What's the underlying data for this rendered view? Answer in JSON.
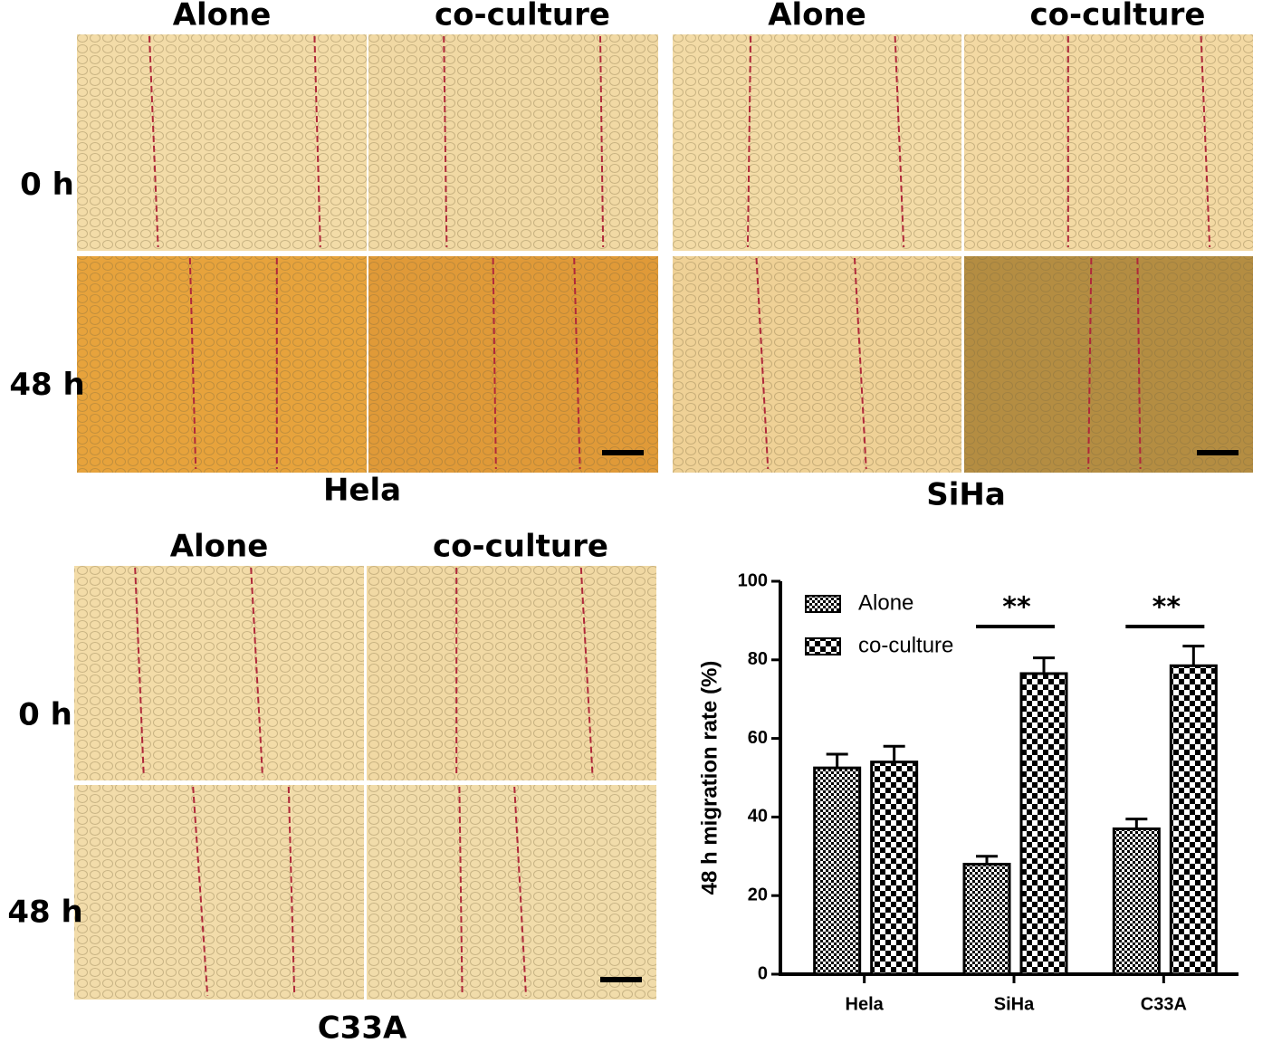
{
  "panels": [
    {
      "title": "Hela",
      "columns": [
        "Alone",
        "co-culture"
      ],
      "rows": [
        "0 h",
        "48 h"
      ]
    },
    {
      "title": "SiHa",
      "columns": [
        "Alone",
        "co-culture"
      ]
    },
    {
      "title": "C33A",
      "columns": [
        "Alone",
        "co-culture"
      ],
      "rows": [
        "0 h",
        "48 h"
      ]
    }
  ],
  "chart_data": {
    "type": "bar",
    "ylabel": "48 h migration rate (%)",
    "categories": [
      "Hela",
      "SiHa",
      "C33A"
    ],
    "series": [
      {
        "name": "Alone",
        "color": "#000000",
        "pattern": "fine-check",
        "values": [
          52.5,
          28,
          37
        ],
        "errors": [
          3.5,
          2,
          2.5
        ]
      },
      {
        "name": "co-culture",
        "color": "#000000",
        "pattern": "coarse-check",
        "values": [
          54,
          76.5,
          78.5
        ],
        "errors": [
          4,
          4,
          5
        ]
      }
    ],
    "ylim": [
      0,
      100
    ],
    "yticks": [
      0,
      20,
      40,
      60,
      80,
      100
    ],
    "legend": "upper left",
    "annotations": [
      {
        "x": "SiHa",
        "text": "**"
      },
      {
        "x": "C33A",
        "text": "**"
      }
    ]
  }
}
